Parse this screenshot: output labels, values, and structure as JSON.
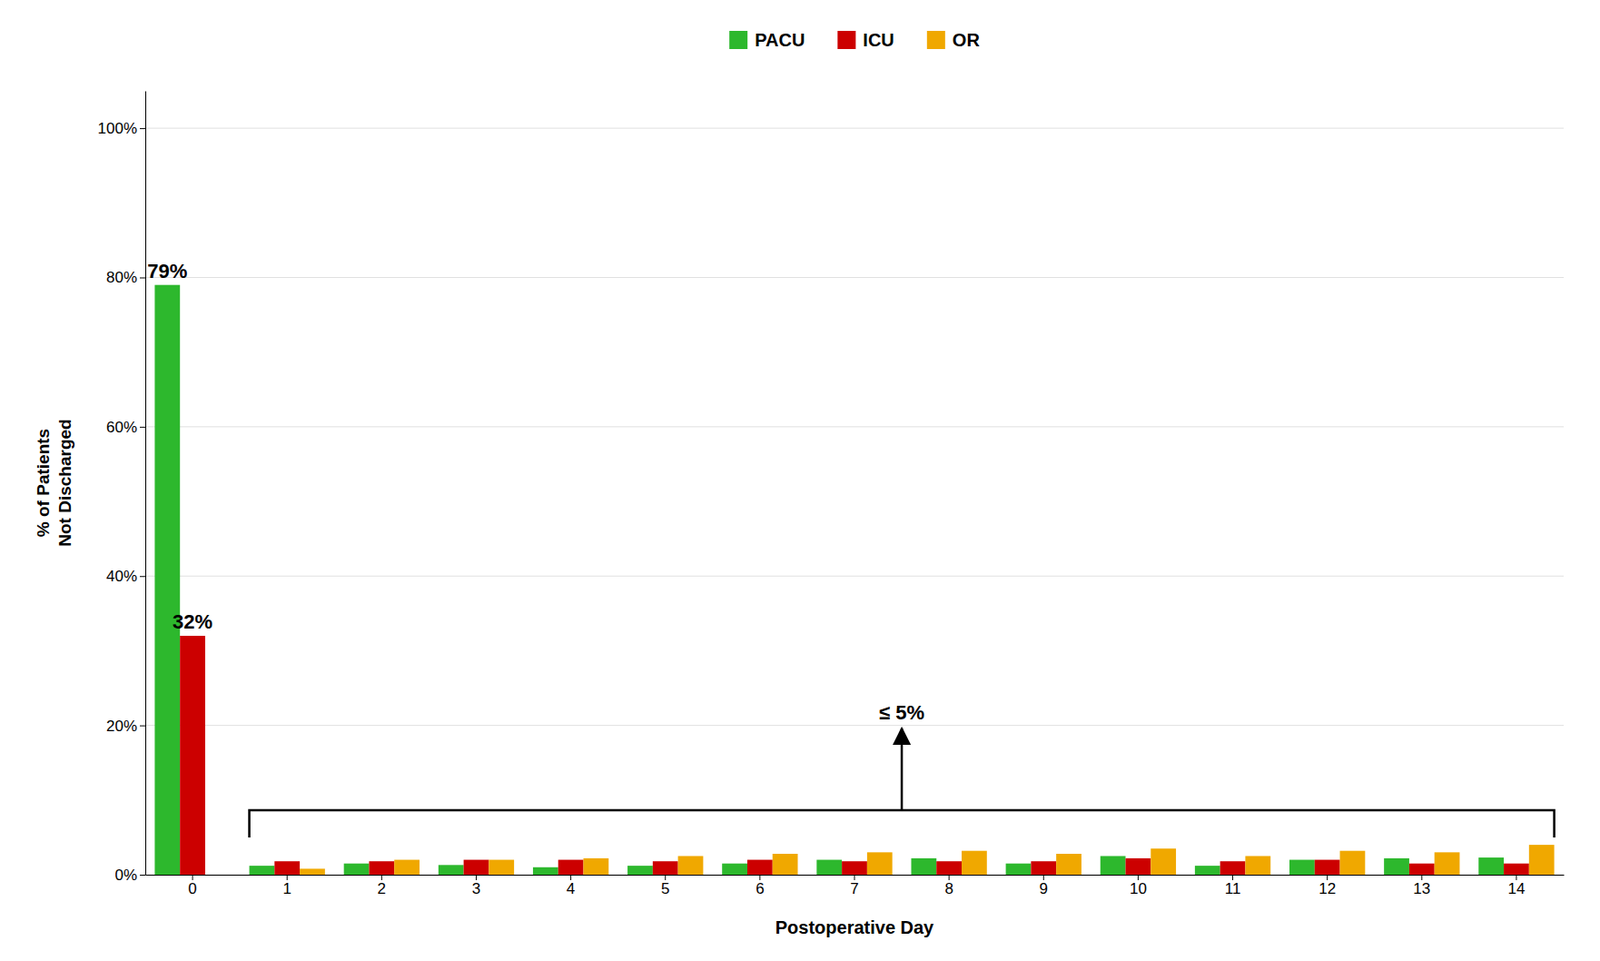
{
  "chart_data": {
    "type": "bar",
    "xlabel": "Postoperative Day",
    "ylabel": [
      "% of Patients",
      "Not Discharged"
    ],
    "categories": [
      0,
      1,
      2,
      3,
      4,
      5,
      6,
      7,
      8,
      9,
      10,
      11,
      12,
      13,
      14
    ],
    "series": [
      {
        "name": "PACU",
        "color": "#2db82d",
        "values": [
          79,
          1.2,
          1.5,
          1.3,
          1.0,
          1.2,
          1.5,
          2.0,
          2.2,
          1.5,
          2.5,
          1.2,
          2.0,
          2.2,
          2.3
        ]
      },
      {
        "name": "ICU",
        "color": "#cc0000",
        "values": [
          32,
          1.8,
          1.8,
          2.0,
          2.0,
          1.8,
          2.0,
          1.8,
          1.8,
          1.8,
          2.2,
          1.8,
          2.0,
          1.5,
          1.5
        ]
      },
      {
        "name": "OR",
        "color": "#f0a800",
        "values": [
          0,
          0.8,
          2.0,
          2.0,
          2.2,
          2.5,
          2.8,
          3.0,
          3.2,
          2.8,
          3.5,
          2.5,
          3.2,
          3.0,
          4.0
        ]
      }
    ],
    "ylim": [
      0,
      105
    ],
    "yticks": [
      {
        "value": 0,
        "label": "0%"
      },
      {
        "value": 20,
        "label": "20%"
      },
      {
        "value": 40,
        "label": "40%"
      },
      {
        "value": 60,
        "label": "60%"
      },
      {
        "value": 80,
        "label": "80%"
      },
      {
        "value": 100,
        "label": "100%"
      }
    ],
    "grid": true,
    "legend": "top",
    "annotations": [
      {
        "text": "79%",
        "x": 0,
        "y": 79,
        "series": "PACU"
      },
      {
        "text": "32%",
        "x": 0,
        "y": 32,
        "series": "ICU"
      },
      {
        "text": "≤ 5%",
        "x": [
          1,
          14
        ],
        "y": 5
      }
    ]
  }
}
